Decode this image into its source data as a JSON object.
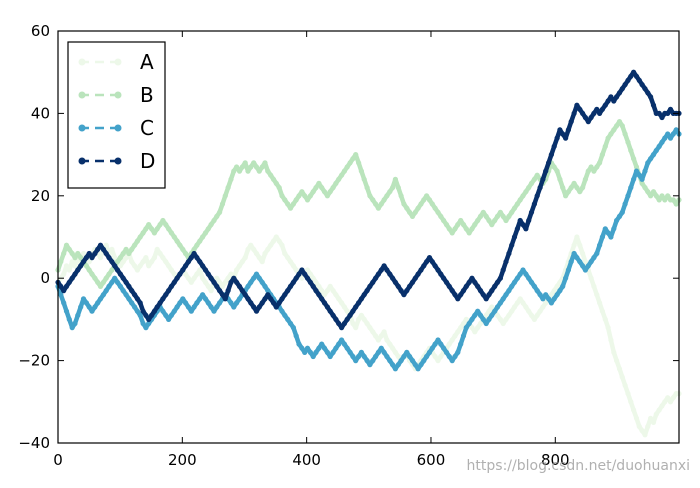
{
  "chart_data": {
    "type": "line",
    "title": "",
    "xlabel": "",
    "ylabel": "",
    "xlim": [
      0,
      999
    ],
    "ylim": [
      -40,
      60
    ],
    "xticks": [
      0,
      200,
      400,
      600,
      800
    ],
    "yticks": [
      -40,
      -20,
      0,
      20,
      40,
      60
    ],
    "grid": false,
    "legend_position": "top-left",
    "line_style": "dashed with dot markers",
    "x_step": 1,
    "series": [
      {
        "name": "A",
        "color": "#edf8e9",
        "values": [
          -1,
          0,
          1,
          3,
          2,
          4,
          3,
          5,
          4,
          6,
          5,
          4,
          6,
          7,
          6,
          5,
          7,
          8,
          6,
          7,
          5,
          4,
          3,
          4,
          5,
          6,
          4,
          3,
          2,
          3,
          4,
          5,
          3,
          4,
          5,
          7,
          6,
          5,
          4,
          3,
          2,
          1,
          0,
          1,
          2,
          1,
          0,
          -1,
          0,
          1,
          2,
          0,
          -1,
          -2,
          -3,
          -1,
          0,
          -1,
          -2,
          -1,
          0,
          1,
          0,
          2,
          3,
          4,
          5,
          7,
          8,
          7,
          6,
          5,
          4,
          6,
          7,
          8,
          9,
          10,
          9,
          8,
          6,
          5,
          4,
          3,
          2,
          1,
          0,
          1,
          2,
          1,
          0,
          -1,
          -2,
          -3,
          -4,
          -3,
          -2,
          -3,
          -4,
          -5,
          -6,
          -7,
          -8,
          -9,
          -11,
          -12,
          -10,
          -9,
          -10,
          -11,
          -12,
          -13,
          -14,
          -15,
          -14,
          -13,
          -15,
          -16,
          -17,
          -18,
          -19,
          -20,
          -19,
          -18,
          -20,
          -21,
          -22,
          -21,
          -20,
          -19,
          -18,
          -17,
          -18,
          -19,
          -20,
          -19,
          -18,
          -17,
          -16,
          -15,
          -14,
          -13,
          -12,
          -11,
          -10,
          -11,
          -12,
          -13,
          -12,
          -11,
          -10,
          -9,
          -8,
          -7,
          -8,
          -9,
          -10,
          -11,
          -10,
          -9,
          -8,
          -7,
          -6,
          -5,
          -6,
          -7,
          -8,
          -9,
          -10,
          -9,
          -8,
          -7,
          -6,
          -5,
          -4,
          -3,
          -2,
          -1,
          0,
          2,
          4,
          6,
          8,
          10,
          8,
          6,
          4,
          2,
          0,
          -2,
          -4,
          -6,
          -8,
          -10,
          -12,
          -15,
          -18,
          -20,
          -22,
          -24,
          -26,
          -28,
          -30,
          -32,
          -34,
          -36,
          -37,
          -38,
          -36,
          -34,
          -35,
          -33,
          -32,
          -31,
          -30,
          -29,
          -30,
          -29,
          -28,
          -28
        ]
      },
      {
        "name": "B",
        "color": "#bae4bc",
        "values": [
          2,
          4,
          6,
          8,
          7,
          6,
          5,
          6,
          5,
          4,
          3,
          2,
          1,
          0,
          -1,
          -2,
          -1,
          0,
          1,
          2,
          3,
          4,
          5,
          6,
          7,
          6,
          7,
          8,
          9,
          10,
          11,
          12,
          13,
          12,
          11,
          12,
          13,
          14,
          13,
          12,
          11,
          10,
          9,
          8,
          7,
          6,
          5,
          6,
          7,
          8,
          9,
          10,
          11,
          12,
          13,
          14,
          15,
          16,
          18,
          20,
          22,
          24,
          26,
          27,
          26,
          27,
          28,
          26,
          27,
          28,
          27,
          26,
          27,
          28,
          26,
          25,
          24,
          23,
          22,
          20,
          19,
          18,
          17,
          18,
          19,
          20,
          21,
          20,
          19,
          20,
          21,
          22,
          23,
          22,
          21,
          20,
          21,
          22,
          23,
          24,
          25,
          26,
          27,
          28,
          29,
          30,
          28,
          26,
          24,
          22,
          20,
          19,
          18,
          17,
          18,
          19,
          20,
          21,
          22,
          24,
          22,
          20,
          18,
          17,
          16,
          15,
          16,
          17,
          18,
          19,
          20,
          19,
          18,
          17,
          16,
          15,
          14,
          13,
          12,
          11,
          12,
          13,
          14,
          13,
          12,
          11,
          12,
          13,
          14,
          15,
          16,
          15,
          14,
          13,
          14,
          15,
          16,
          15,
          14,
          15,
          16,
          17,
          18,
          19,
          20,
          21,
          22,
          23,
          24,
          25,
          24,
          23,
          24,
          26,
          28,
          27,
          26,
          24,
          22,
          20,
          21,
          22,
          23,
          22,
          21,
          22,
          24,
          26,
          27,
          26,
          27,
          28,
          30,
          32,
          34,
          35,
          36,
          37,
          38,
          37,
          35,
          33,
          31,
          29,
          27,
          25,
          23,
          22,
          21,
          20,
          21,
          20,
          19,
          20,
          19,
          20,
          19,
          19,
          18,
          19
        ]
      },
      {
        "name": "C",
        "color": "#43a2ca",
        "values": [
          -2,
          -4,
          -6,
          -8,
          -10,
          -12,
          -11,
          -9,
          -7,
          -5,
          -6,
          -7,
          -8,
          -7,
          -6,
          -5,
          -4,
          -3,
          -2,
          -1,
          0,
          -1,
          -2,
          -3,
          -4,
          -5,
          -6,
          -7,
          -8,
          -9,
          -11,
          -12,
          -11,
          -10,
          -9,
          -8,
          -7,
          -8,
          -9,
          -10,
          -9,
          -8,
          -7,
          -6,
          -5,
          -6,
          -7,
          -8,
          -7,
          -6,
          -5,
          -4,
          -5,
          -6,
          -7,
          -8,
          -7,
          -6,
          -5,
          -4,
          -5,
          -6,
          -7,
          -6,
          -5,
          -4,
          -3,
          -2,
          -1,
          0,
          1,
          0,
          -1,
          -2,
          -3,
          -4,
          -5,
          -6,
          -7,
          -8,
          -9,
          -10,
          -11,
          -12,
          -14,
          -16,
          -17,
          -18,
          -17,
          -18,
          -19,
          -18,
          -17,
          -16,
          -17,
          -18,
          -19,
          -18,
          -17,
          -16,
          -15,
          -16,
          -17,
          -18,
          -19,
          -20,
          -19,
          -18,
          -19,
          -20,
          -21,
          -20,
          -19,
          -18,
          -17,
          -18,
          -19,
          -20,
          -21,
          -22,
          -21,
          -20,
          -19,
          -18,
          -19,
          -20,
          -21,
          -22,
          -21,
          -20,
          -19,
          -18,
          -17,
          -16,
          -15,
          -16,
          -17,
          -18,
          -19,
          -20,
          -19,
          -18,
          -16,
          -14,
          -12,
          -11,
          -10,
          -9,
          -8,
          -9,
          -10,
          -11,
          -10,
          -9,
          -8,
          -7,
          -6,
          -5,
          -4,
          -3,
          -2,
          -1,
          0,
          1,
          2,
          1,
          0,
          -1,
          -2,
          -3,
          -4,
          -5,
          -4,
          -5,
          -6,
          -5,
          -4,
          -3,
          -2,
          0,
          2,
          4,
          6,
          5,
          4,
          3,
          2,
          3,
          4,
          5,
          6,
          8,
          10,
          12,
          11,
          10,
          12,
          14,
          15,
          16,
          18,
          20,
          22,
          24,
          26,
          25,
          24,
          26,
          28,
          29,
          30,
          31,
          32,
          33,
          34,
          35,
          34,
          35,
          36,
          35
        ]
      },
      {
        "name": "D",
        "color": "#08306b",
        "values": [
          -1,
          -2,
          -3,
          -2,
          -1,
          0,
          1,
          2,
          3,
          4,
          5,
          6,
          5,
          6,
          7,
          8,
          7,
          6,
          5,
          4,
          3,
          2,
          1,
          0,
          -1,
          -2,
          -3,
          -4,
          -5,
          -6,
          -8,
          -9,
          -10,
          -9,
          -8,
          -7,
          -6,
          -5,
          -4,
          -3,
          -2,
          -1,
          0,
          1,
          2,
          3,
          4,
          5,
          6,
          5,
          4,
          3,
          2,
          1,
          0,
          -1,
          -2,
          -3,
          -4,
          -5,
          -3,
          -1,
          0,
          -1,
          -2,
          -3,
          -4,
          -5,
          -6,
          -7,
          -8,
          -7,
          -6,
          -5,
          -4,
          -5,
          -6,
          -7,
          -6,
          -5,
          -4,
          -3,
          -2,
          -1,
          0,
          1,
          2,
          1,
          0,
          -1,
          -2,
          -3,
          -4,
          -5,
          -6,
          -7,
          -8,
          -9,
          -10,
          -11,
          -12,
          -11,
          -10,
          -9,
          -8,
          -7,
          -6,
          -5,
          -4,
          -3,
          -2,
          -1,
          0,
          1,
          2,
          3,
          2,
          1,
          0,
          -1,
          -2,
          -3,
          -4,
          -3,
          -2,
          -1,
          0,
          1,
          2,
          3,
          4,
          5,
          4,
          3,
          2,
          1,
          0,
          -1,
          -2,
          -3,
          -4,
          -5,
          -4,
          -3,
          -2,
          -1,
          0,
          -1,
          -2,
          -3,
          -4,
          -5,
          -4,
          -3,
          -2,
          -1,
          0,
          2,
          4,
          6,
          8,
          10,
          12,
          14,
          13,
          12,
          14,
          16,
          18,
          20,
          22,
          24,
          26,
          28,
          30,
          32,
          34,
          36,
          35,
          34,
          36,
          38,
          40,
          42,
          41,
          40,
          39,
          38,
          39,
          40,
          41,
          40,
          41,
          42,
          43,
          44,
          43,
          44,
          45,
          46,
          47,
          48,
          49,
          50,
          49,
          48,
          47,
          46,
          45,
          44,
          42,
          40,
          40,
          39,
          40,
          40,
          41,
          40,
          40,
          40
        ]
      }
    ]
  },
  "watermark": "https://blog.csdn.net/duohuanxi"
}
